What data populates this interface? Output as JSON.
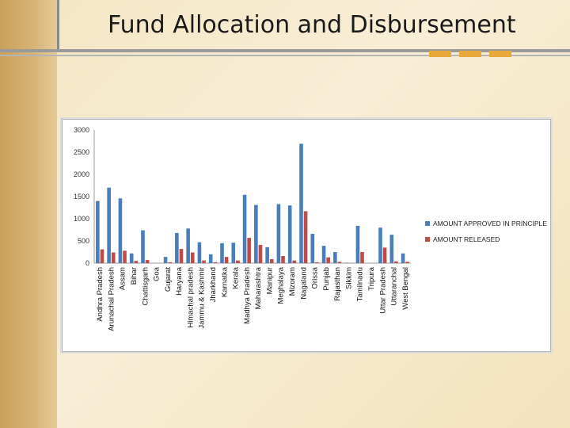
{
  "slide": {
    "title": "Fund Allocation and Disbursement"
  },
  "colors": {
    "approved": "#4a7ebb",
    "released": "#be4b48",
    "accent": "#e8a93a"
  },
  "chart_data": {
    "type": "bar",
    "categories": [
      "Andhra Pradesh",
      "Arunachal Pradesh",
      "Assam",
      "Bihar",
      "Chattisgarh",
      "Goa",
      "Gujarat",
      "Haryana",
      "Himachal pradesh",
      "Jammu & Kashmir",
      "Jharkhand",
      "Karnatka",
      "Kerala",
      "Madhya Pradesh",
      "Maharashtra",
      "Manipur",
      "Meghalaya",
      "Mizoram",
      "Nagaland",
      "Orissa",
      "Punjab",
      "Rajasthan",
      "Sikkim",
      "Tamilnadu",
      "Tripura",
      "Uttar Pradesh",
      "Uttaranchal",
      "West Bengal"
    ],
    "series": [
      {
        "name": "AMOUNT APPROVED IN PRINCIPLE",
        "values": [
          1400,
          1700,
          1460,
          220,
          740,
          0,
          140,
          680,
          780,
          470,
          200,
          450,
          460,
          1540,
          1310,
          360,
          1330,
          1300,
          2690,
          660,
          390,
          250,
          10,
          840,
          0,
          800,
          640,
          220
        ]
      },
      {
        "name": "AMOUNT RELEASED",
        "values": [
          310,
          240,
          280,
          50,
          70,
          0,
          20,
          320,
          240,
          60,
          20,
          140,
          60,
          570,
          410,
          90,
          160,
          60,
          1170,
          20,
          130,
          30,
          5,
          250,
          0,
          350,
          40,
          30
        ]
      }
    ],
    "ylim": [
      0,
      3000
    ],
    "yticks": [
      "0",
      "500",
      "1000",
      "1500",
      "2000",
      "2500",
      "3000"
    ],
    "grid": false,
    "legend_position": "right"
  }
}
